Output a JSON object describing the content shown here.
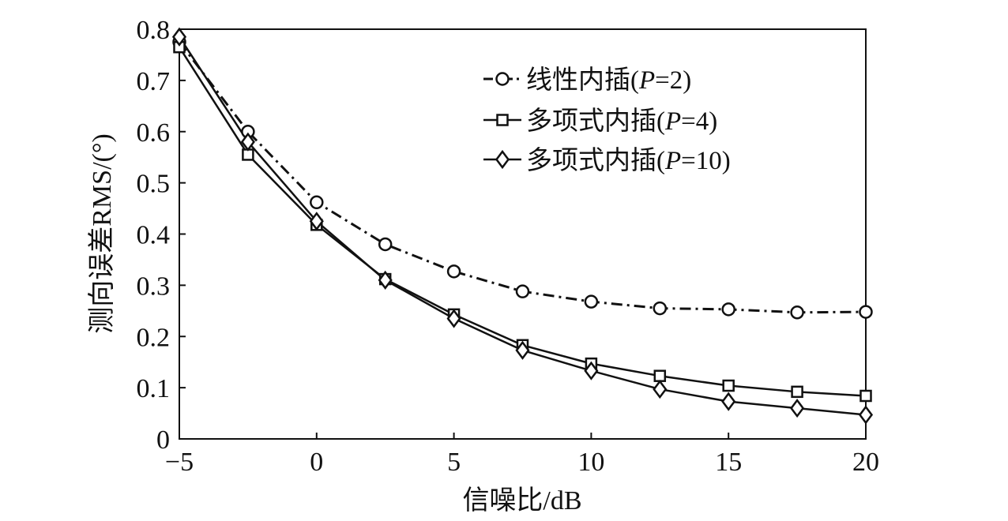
{
  "chart_data": {
    "type": "line",
    "xlabel": "信噪比/dB",
    "ylabel": "测向误差RMS/(°)",
    "xlim": [
      -5,
      20
    ],
    "ylim": [
      0,
      0.8
    ],
    "xticks": [
      -5,
      0,
      5,
      10,
      15,
      20
    ],
    "xtick_labels": [
      "−5",
      "0",
      "5",
      "10",
      "15",
      "20"
    ],
    "yticks": [
      0,
      0.1,
      0.2,
      0.3,
      0.4,
      0.5,
      0.6,
      0.7,
      0.8
    ],
    "ytick_labels": [
      "0",
      "0.1",
      "0.2",
      "0.3",
      "0.4",
      "0.5",
      "0.6",
      "0.7",
      "0.8"
    ],
    "grid": false,
    "legend_position": "top-right",
    "x": [
      -5,
      -2.5,
      0,
      2.5,
      5,
      7.5,
      10,
      12.5,
      15,
      17.5,
      20
    ],
    "series": [
      {
        "name": "线性内插(P=2)",
        "legend_prefix": "线性内插(",
        "legend_var": "P",
        "legend_suffix": "=2)",
        "marker": "circle",
        "line_style": "dash-dot",
        "values": [
          0.775,
          0.6,
          0.462,
          0.38,
          0.327,
          0.288,
          0.268,
          0.255,
          0.253,
          0.247,
          0.248
        ]
      },
      {
        "name": "多项式内插(P=4)",
        "legend_prefix": "多项式内插(",
        "legend_var": "P",
        "legend_suffix": "=4)",
        "marker": "square",
        "line_style": "solid",
        "values": [
          0.765,
          0.555,
          0.418,
          0.312,
          0.243,
          0.183,
          0.147,
          0.123,
          0.104,
          0.092,
          0.084
        ]
      },
      {
        "name": "多项式内插(P=10)",
        "legend_prefix": "多项式内插(",
        "legend_var": "P",
        "legend_suffix": "=10)",
        "marker": "diamond",
        "line_style": "solid",
        "values": [
          0.785,
          0.58,
          0.425,
          0.31,
          0.235,
          0.173,
          0.133,
          0.097,
          0.073,
          0.06,
          0.047
        ]
      }
    ]
  }
}
